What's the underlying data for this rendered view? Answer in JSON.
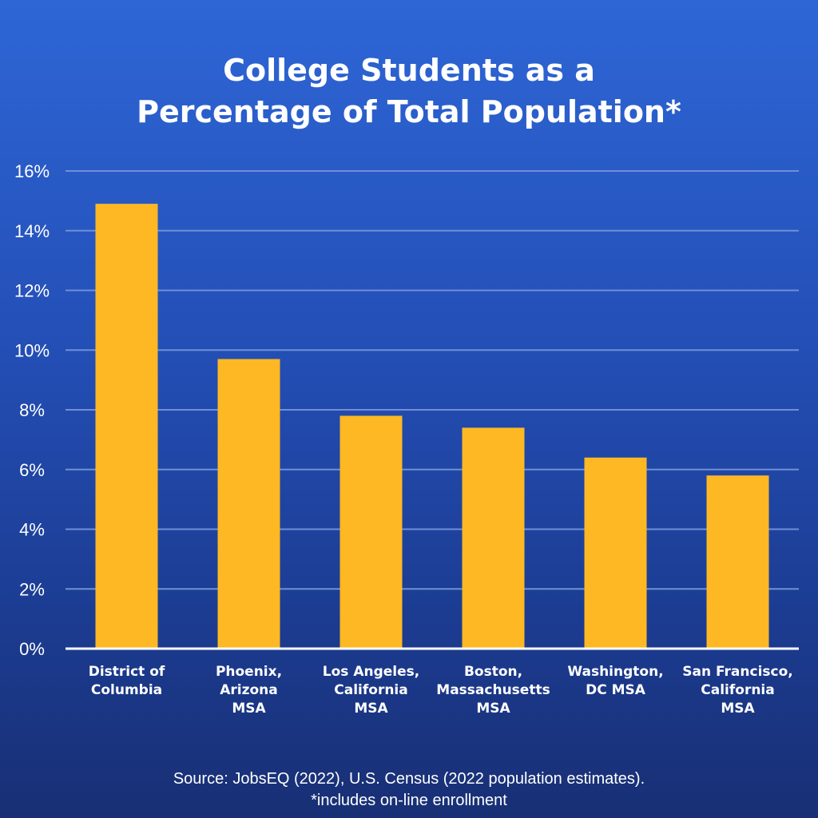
{
  "chart_data": {
    "type": "bar",
    "title_lines": [
      "College Students as a",
      "Percentage of Total Population*"
    ],
    "categories": [
      [
        "District of",
        "Columbia"
      ],
      [
        "Phoenix,",
        "Arizona",
        "MSA"
      ],
      [
        "Los Angeles,",
        "California",
        "MSA"
      ],
      [
        "Boston,",
        "Massachusetts",
        "MSA"
      ],
      [
        "Washington,",
        "DC MSA"
      ],
      [
        "San Francisco,",
        "California",
        "MSA"
      ]
    ],
    "values": [
      14.9,
      9.7,
      7.8,
      7.4,
      6.4,
      5.8
    ],
    "unit": "%",
    "ylim": [
      0,
      16
    ],
    "yticks": [
      0,
      2,
      4,
      6,
      8,
      10,
      12,
      14,
      16
    ],
    "ytick_labels": [
      "0%",
      "2%",
      "4%",
      "6%",
      "8%",
      "10%",
      "12%",
      "14%",
      "16%"
    ],
    "grid": true,
    "colors": {
      "bar": "#fdb823",
      "grid": "#6f8fd6",
      "axis": "#ffffff",
      "text": "#ffffff"
    }
  },
  "footer": {
    "source": "Source: JobsEQ (2022), U.S. Census (2022 population estimates).",
    "note": "*includes on-line enrollment"
  }
}
